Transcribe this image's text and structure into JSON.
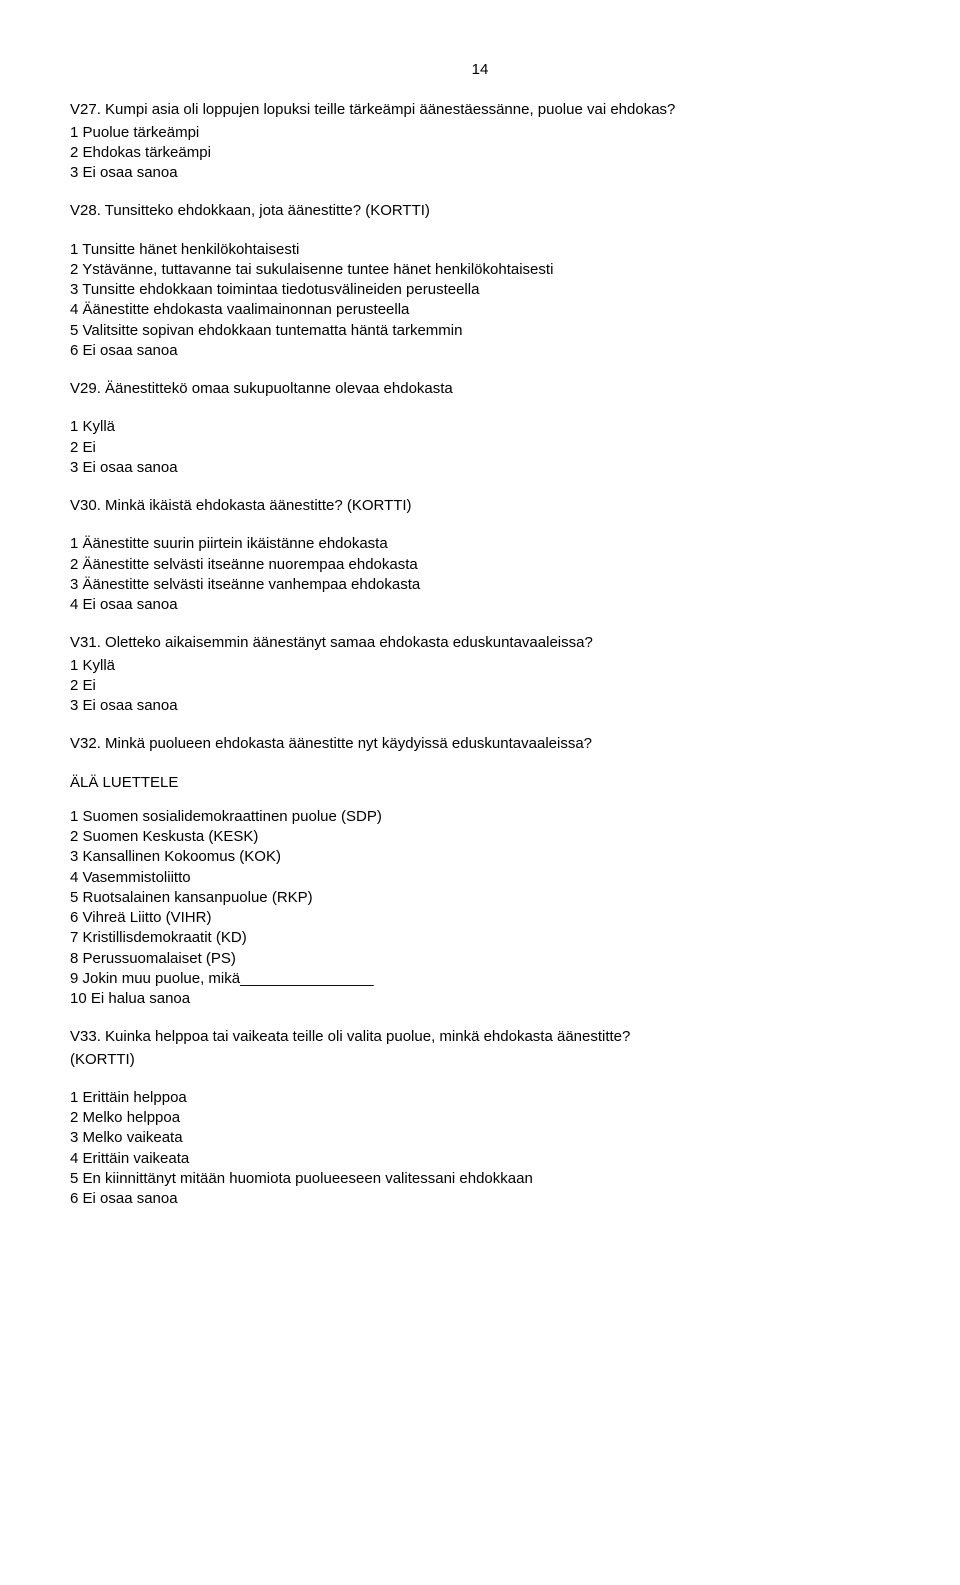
{
  "page_number": "14",
  "q27": {
    "text": "V27.  Kumpi asia oli loppujen lopuksi teille tärkeämpi äänestäessänne, puolue vai ehdokas?",
    "options": [
      "1  Puolue tärkeämpi",
      "2  Ehdokas tärkeämpi",
      "3  Ei osaa sanoa"
    ]
  },
  "q28": {
    "text": "V28.  Tunsitteko ehdokkaan, jota äänestitte? (KORTTI)",
    "options": [
      "1  Tunsitte hänet henkilökohtaisesti",
      "2  Ystävänne, tuttavanne tai sukulaisenne tuntee hänet henkilökohtaisesti",
      "3  Tunsitte ehdokkaan toimintaa tiedotusvälineiden perusteella",
      "4  Äänestitte ehdokasta vaalimainonnan perusteella",
      "5  Valitsitte sopivan ehdokkaan tuntematta häntä tarkemmin",
      "6  Ei osaa sanoa"
    ]
  },
  "q29": {
    "text": "V29.  Äänestittekö omaa sukupuoltanne olevaa ehdokasta",
    "options": [
      "1  Kyllä",
      "2  Ei",
      "3  Ei osaa sanoa"
    ]
  },
  "q30": {
    "text": "V30.  Minkä ikäistä ehdokasta äänestitte? (KORTTI)",
    "options": [
      "1  Äänestitte suurin piirtein ikäistänne ehdokasta",
      "2  Äänestitte selvästi itseänne nuorempaa ehdokasta",
      "3  Äänestitte selvästi itseänne vanhempaa ehdokasta",
      "4  Ei osaa sanoa"
    ]
  },
  "q31": {
    "text": "V31.  Oletteko aikaisemmin äänestänyt samaa ehdokasta eduskuntavaaleissa?",
    "options": [
      "1  Kyllä",
      "2  Ei",
      "3  Ei osaa sanoa"
    ]
  },
  "q32": {
    "text": "V32. Minkä puolueen ehdokasta äänestitte nyt käydyissä eduskuntavaaleissa?",
    "note": "ÄLÄ LUETTELE",
    "options": [
      "1  Suomen sosialidemokraattinen puolue (SDP)",
      "2  Suomen Keskusta (KESK)",
      "3  Kansallinen Kokoomus (KOK)",
      "4  Vasemmistoliitto",
      "5  Ruotsalainen kansanpuolue (RKP)",
      "6  Vihreä Liitto (VIHR)",
      "7  Kristillisdemokraatit (KD)",
      "8  Perussuomalaiset (PS)",
      "9  Jokin muu puolue, mikä________________",
      "10 Ei halua sanoa"
    ]
  },
  "q33": {
    "text_line1": "V33.  Kuinka helppoa tai vaikeata teille oli valita puolue, minkä ehdokasta äänestitte?",
    "text_line2": "(KORTTI)",
    "options": [
      "1  Erittäin helppoa",
      "2  Melko helppoa",
      "3  Melko vaikeata",
      "4  Erittäin vaikeata",
      "5  En kiinnittänyt mitään huomiota puolueeseen valitessani ehdokkaan",
      "6  Ei osaa sanoa"
    ]
  }
}
